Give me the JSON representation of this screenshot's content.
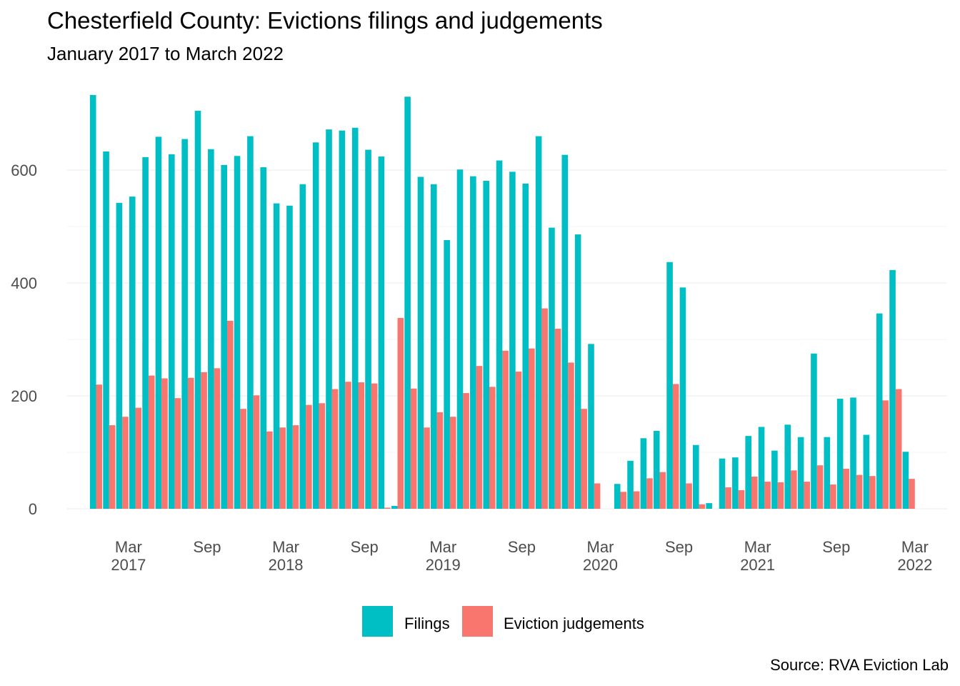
{
  "chart_data": {
    "type": "bar",
    "title": "Chesterfield County: Evictions filings and judgements",
    "subtitle": "January 2017 to March 2022",
    "caption": "Source: RVA Eviction Lab",
    "xlabel": "",
    "ylabel": "",
    "ylim": [
      0,
      740
    ],
    "y_ticks": [
      0,
      200,
      400,
      600
    ],
    "grid": true,
    "legend_position": "bottom",
    "x_tick_labels": [
      {
        "month": "2017-03",
        "line1": "Mar",
        "line2": "2017"
      },
      {
        "month": "2017-09",
        "line1": "Sep",
        "line2": ""
      },
      {
        "month": "2018-03",
        "line1": "Mar",
        "line2": "2018"
      },
      {
        "month": "2018-09",
        "line1": "Sep",
        "line2": ""
      },
      {
        "month": "2019-03",
        "line1": "Mar",
        "line2": "2019"
      },
      {
        "month": "2019-09",
        "line1": "Sep",
        "line2": ""
      },
      {
        "month": "2020-03",
        "line1": "Mar",
        "line2": "2020"
      },
      {
        "month": "2020-09",
        "line1": "Sep",
        "line2": ""
      },
      {
        "month": "2021-03",
        "line1": "Mar",
        "line2": "2021"
      },
      {
        "month": "2021-09",
        "line1": "Sep",
        "line2": ""
      },
      {
        "month": "2022-03",
        "line1": "Mar",
        "line2": "2022"
      }
    ],
    "categories": [
      "2017-01",
      "2017-02",
      "2017-03",
      "2017-04",
      "2017-05",
      "2017-06",
      "2017-07",
      "2017-08",
      "2017-09",
      "2017-10",
      "2017-11",
      "2017-12",
      "2018-01",
      "2018-02",
      "2018-03",
      "2018-04",
      "2018-05",
      "2018-06",
      "2018-07",
      "2018-08",
      "2018-09",
      "2018-10",
      "2018-11",
      "2018-12",
      "2019-01",
      "2019-02",
      "2019-03",
      "2019-04",
      "2019-05",
      "2019-06",
      "2019-07",
      "2019-08",
      "2019-09",
      "2019-10",
      "2019-11",
      "2019-12",
      "2020-01",
      "2020-02",
      "2020-03",
      "2020-04",
      "2020-05",
      "2020-06",
      "2020-07",
      "2020-08",
      "2020-09",
      "2020-10",
      "2020-11",
      "2020-12",
      "2021-01",
      "2021-02",
      "2021-03",
      "2021-04",
      "2021-05",
      "2021-06",
      "2021-07",
      "2021-08",
      "2021-09",
      "2021-10",
      "2021-11",
      "2021-12",
      "2022-01",
      "2022-02",
      "2022-03"
    ],
    "series": [
      {
        "name": "Filings",
        "color": "#00bfc4",
        "values": [
          733,
          633,
          542,
          553,
          623,
          659,
          628,
          655,
          705,
          637,
          609,
          625,
          660,
          605,
          541,
          537,
          575,
          649,
          672,
          670,
          675,
          636,
          624,
          5,
          730,
          588,
          575,
          476,
          601,
          589,
          581,
          617,
          597,
          576,
          660,
          498,
          627,
          486,
          292,
          null,
          44,
          85,
          125,
          138,
          437,
          392,
          113,
          10,
          89,
          91,
          129,
          145,
          103,
          149,
          127,
          275,
          127,
          195,
          197,
          131,
          346,
          423,
          101
        ]
      },
      {
        "name": "Eviction judgements",
        "color": "#f8766d",
        "values": [
          220,
          148,
          163,
          179,
          236,
          231,
          196,
          232,
          242,
          249,
          333,
          177,
          201,
          137,
          144,
          148,
          184,
          187,
          212,
          225,
          224,
          222,
          2,
          338,
          213,
          144,
          171,
          163,
          205,
          253,
          216,
          280,
          243,
          284,
          355,
          319,
          259,
          177,
          45,
          null,
          30,
          31,
          54,
          65,
          221,
          45,
          8,
          null,
          38,
          33,
          57,
          48,
          47,
          68,
          48,
          77,
          43,
          71,
          60,
          58,
          192,
          212,
          53
        ]
      }
    ]
  }
}
